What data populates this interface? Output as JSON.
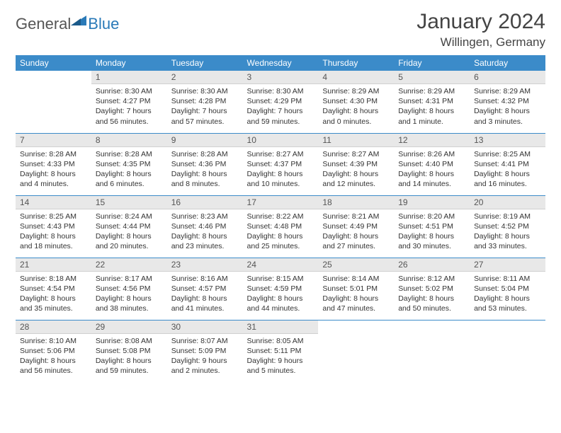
{
  "logo": {
    "part1": "General",
    "part2": "Blue"
  },
  "title": "January 2024",
  "location": "Willingen, Germany",
  "style": {
    "header_bg": "#3b8bc9",
    "header_fg": "#ffffff",
    "daynum_bg": "#e8e8e8",
    "border_color": "#3b8bc9",
    "title_fontsize": 30,
    "location_fontsize": 17,
    "th_fontsize": 12,
    "cell_fontsize": 10.5
  },
  "weekdays": [
    "Sunday",
    "Monday",
    "Tuesday",
    "Wednesday",
    "Thursday",
    "Friday",
    "Saturday"
  ],
  "weeks": [
    [
      {
        "empty": true
      },
      {
        "n": "1",
        "sr": "8:30 AM",
        "ss": "4:27 PM",
        "dl": "7 hours and 56 minutes."
      },
      {
        "n": "2",
        "sr": "8:30 AM",
        "ss": "4:28 PM",
        "dl": "7 hours and 57 minutes."
      },
      {
        "n": "3",
        "sr": "8:30 AM",
        "ss": "4:29 PM",
        "dl": "7 hours and 59 minutes."
      },
      {
        "n": "4",
        "sr": "8:29 AM",
        "ss": "4:30 PM",
        "dl": "8 hours and 0 minutes."
      },
      {
        "n": "5",
        "sr": "8:29 AM",
        "ss": "4:31 PM",
        "dl": "8 hours and 1 minute."
      },
      {
        "n": "6",
        "sr": "8:29 AM",
        "ss": "4:32 PM",
        "dl": "8 hours and 3 minutes."
      }
    ],
    [
      {
        "n": "7",
        "sr": "8:28 AM",
        "ss": "4:33 PM",
        "dl": "8 hours and 4 minutes."
      },
      {
        "n": "8",
        "sr": "8:28 AM",
        "ss": "4:35 PM",
        "dl": "8 hours and 6 minutes."
      },
      {
        "n": "9",
        "sr": "8:28 AM",
        "ss": "4:36 PM",
        "dl": "8 hours and 8 minutes."
      },
      {
        "n": "10",
        "sr": "8:27 AM",
        "ss": "4:37 PM",
        "dl": "8 hours and 10 minutes."
      },
      {
        "n": "11",
        "sr": "8:27 AM",
        "ss": "4:39 PM",
        "dl": "8 hours and 12 minutes."
      },
      {
        "n": "12",
        "sr": "8:26 AM",
        "ss": "4:40 PM",
        "dl": "8 hours and 14 minutes."
      },
      {
        "n": "13",
        "sr": "8:25 AM",
        "ss": "4:41 PM",
        "dl": "8 hours and 16 minutes."
      }
    ],
    [
      {
        "n": "14",
        "sr": "8:25 AM",
        "ss": "4:43 PM",
        "dl": "8 hours and 18 minutes."
      },
      {
        "n": "15",
        "sr": "8:24 AM",
        "ss": "4:44 PM",
        "dl": "8 hours and 20 minutes."
      },
      {
        "n": "16",
        "sr": "8:23 AM",
        "ss": "4:46 PM",
        "dl": "8 hours and 23 minutes."
      },
      {
        "n": "17",
        "sr": "8:22 AM",
        "ss": "4:48 PM",
        "dl": "8 hours and 25 minutes."
      },
      {
        "n": "18",
        "sr": "8:21 AM",
        "ss": "4:49 PM",
        "dl": "8 hours and 27 minutes."
      },
      {
        "n": "19",
        "sr": "8:20 AM",
        "ss": "4:51 PM",
        "dl": "8 hours and 30 minutes."
      },
      {
        "n": "20",
        "sr": "8:19 AM",
        "ss": "4:52 PM",
        "dl": "8 hours and 33 minutes."
      }
    ],
    [
      {
        "n": "21",
        "sr": "8:18 AM",
        "ss": "4:54 PM",
        "dl": "8 hours and 35 minutes."
      },
      {
        "n": "22",
        "sr": "8:17 AM",
        "ss": "4:56 PM",
        "dl": "8 hours and 38 minutes."
      },
      {
        "n": "23",
        "sr": "8:16 AM",
        "ss": "4:57 PM",
        "dl": "8 hours and 41 minutes."
      },
      {
        "n": "24",
        "sr": "8:15 AM",
        "ss": "4:59 PM",
        "dl": "8 hours and 44 minutes."
      },
      {
        "n": "25",
        "sr": "8:14 AM",
        "ss": "5:01 PM",
        "dl": "8 hours and 47 minutes."
      },
      {
        "n": "26",
        "sr": "8:12 AM",
        "ss": "5:02 PM",
        "dl": "8 hours and 50 minutes."
      },
      {
        "n": "27",
        "sr": "8:11 AM",
        "ss": "5:04 PM",
        "dl": "8 hours and 53 minutes."
      }
    ],
    [
      {
        "n": "28",
        "sr": "8:10 AM",
        "ss": "5:06 PM",
        "dl": "8 hours and 56 minutes."
      },
      {
        "n": "29",
        "sr": "8:08 AM",
        "ss": "5:08 PM",
        "dl": "8 hours and 59 minutes."
      },
      {
        "n": "30",
        "sr": "8:07 AM",
        "ss": "5:09 PM",
        "dl": "9 hours and 2 minutes."
      },
      {
        "n": "31",
        "sr": "8:05 AM",
        "ss": "5:11 PM",
        "dl": "9 hours and 5 minutes."
      },
      {
        "empty": true
      },
      {
        "empty": true
      },
      {
        "empty": true
      }
    ]
  ],
  "labels": {
    "sunrise": "Sunrise:",
    "sunset": "Sunset:",
    "daylight": "Daylight:"
  }
}
